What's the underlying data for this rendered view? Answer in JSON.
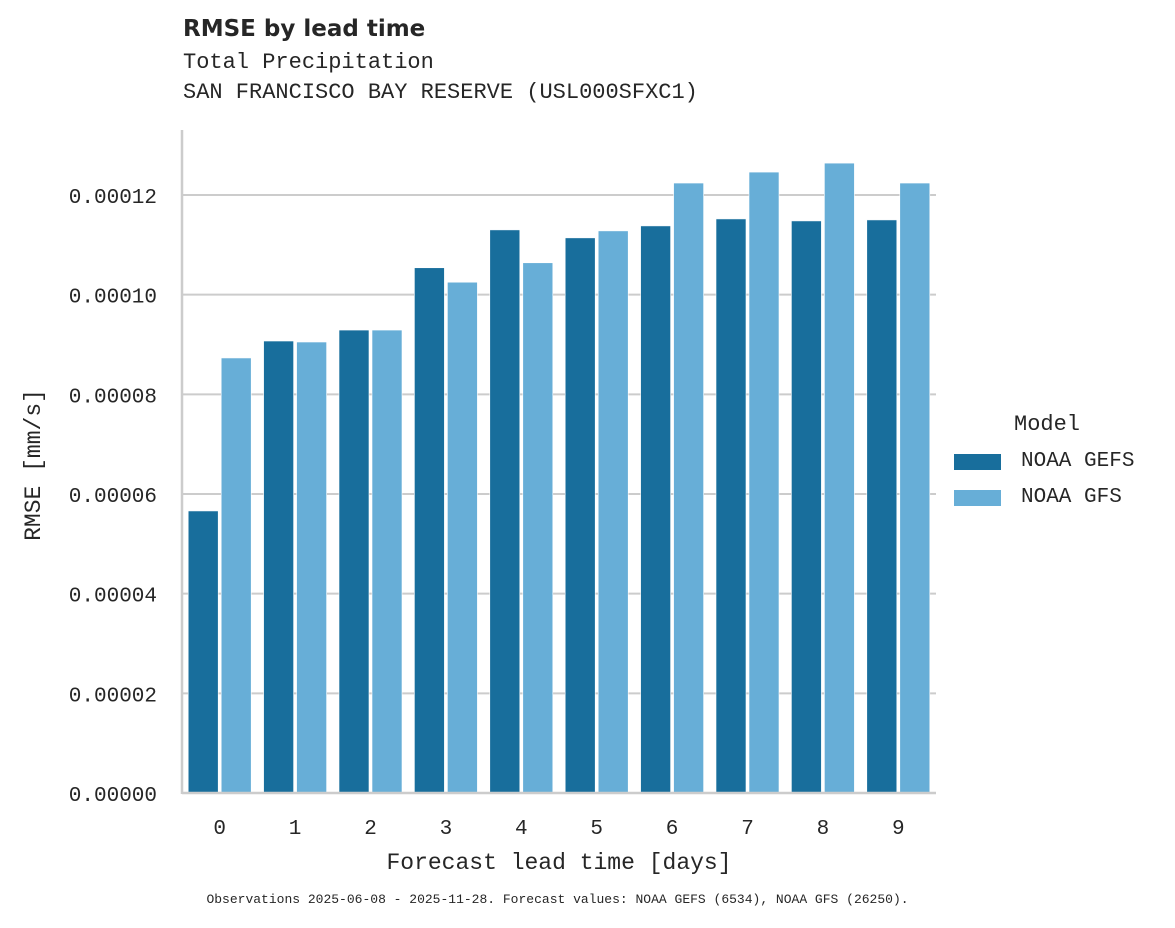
{
  "header": {
    "title": "RMSE by lead time",
    "subtitle1": "Total Precipitation",
    "subtitle2": "SAN FRANCISCO BAY RESERVE (USL000SFXC1)"
  },
  "legend": {
    "title": "Model",
    "items": [
      {
        "label": "NOAA GEFS",
        "color": "#186e9c"
      },
      {
        "label": "NOAA GFS",
        "color": "#67aed7"
      }
    ]
  },
  "footer": "Observations 2025-06-08 - 2025-11-28. Forecast values: NOAA GEFS (6534), NOAA GFS (26250).",
  "chart_data": {
    "type": "bar",
    "title": "RMSE by lead time",
    "subtitle": "Total Precipitation — SAN FRANCISCO BAY RESERVE (USL000SFXC1)",
    "xlabel": "Forecast lead time [days]",
    "ylabel": "RMSE [mm/s]",
    "categories": [
      "0",
      "1",
      "2",
      "3",
      "4",
      "5",
      "6",
      "7",
      "8",
      "9"
    ],
    "yticks": [
      "0.00000",
      "0.00002",
      "0.00004",
      "0.00006",
      "0.00008",
      "0.00010",
      "0.00012"
    ],
    "ylim": [
      0,
      0.000133
    ],
    "grid": "horizontal",
    "legend_position": "right",
    "series": [
      {
        "name": "NOAA GEFS",
        "color": "#186e9c",
        "values": [
          5.66e-05,
          9.07e-05,
          9.29e-05,
          0.0001054,
          0.000113,
          0.0001114,
          0.0001138,
          0.0001152,
          0.0001148,
          0.000115
        ]
      },
      {
        "name": "NOAA GFS",
        "color": "#67aed7",
        "values": [
          8.73e-05,
          9.05e-05,
          9.29e-05,
          0.0001025,
          0.0001064,
          0.0001128,
          0.0001224,
          0.0001246,
          0.0001264,
          0.0001224
        ]
      }
    ]
  }
}
